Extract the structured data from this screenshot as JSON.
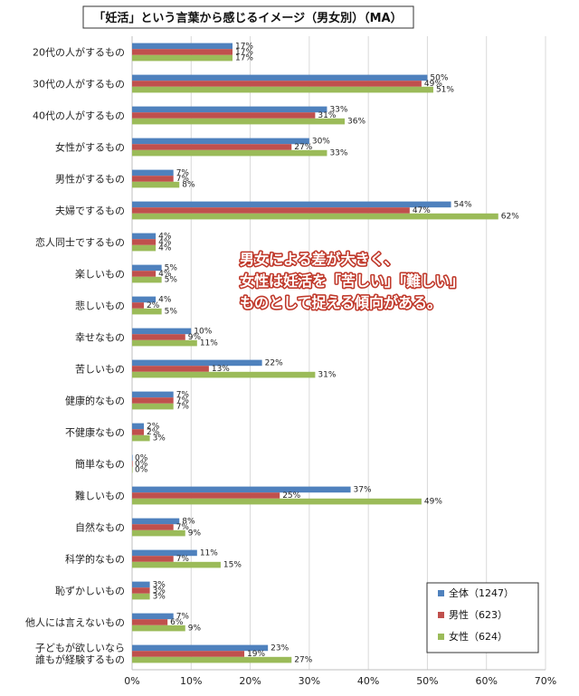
{
  "chart_data": {
    "type": "bar",
    "orientation": "horizontal",
    "title": "「妊活」という言葉から感じるイメージ（男女別）（MA）",
    "categories": [
      "20代の人がするもの",
      "30代の人がするもの",
      "40代の人がするもの",
      "女性がするもの",
      "男性がするもの",
      "夫婦でするもの",
      "恋人同士でするもの",
      "楽しいもの",
      "悲しいもの",
      "幸せなもの",
      "苦しいもの",
      "健康的なもの",
      "不健康なもの",
      "簡単なもの",
      "難しいもの",
      "自然なもの",
      "科学的なもの",
      "恥ずかしいもの",
      "他人には言えないもの",
      [
        "子どもが欲しいなら",
        "誰もが経験するもの"
      ]
    ],
    "series": [
      {
        "name": "全体（1247）",
        "color": "#4f81bd",
        "values": [
          17,
          50,
          33,
          30,
          7,
          54,
          4,
          5,
          4,
          10,
          22,
          7,
          2,
          0,
          37,
          8,
          11,
          3,
          7,
          23
        ]
      },
      {
        "name": "男性（623）",
        "color": "#c0504d",
        "values": [
          17,
          49,
          31,
          27,
          7,
          47,
          4,
          4,
          2,
          9,
          13,
          7,
          2,
          0,
          25,
          7,
          7,
          3,
          6,
          19
        ]
      },
      {
        "name": "女性（624）",
        "color": "#9bbb59",
        "values": [
          17,
          51,
          36,
          33,
          8,
          62,
          4,
          5,
          5,
          11,
          31,
          7,
          3,
          0,
          49,
          9,
          15,
          3,
          9,
          27
        ]
      }
    ],
    "value_suffix": "%",
    "xlim": [
      0,
      70
    ],
    "xticks": [
      0,
      10,
      20,
      30,
      40,
      50,
      60,
      70
    ],
    "xtick_labels": [
      "0%",
      "10%",
      "20%",
      "30%",
      "40%",
      "50%",
      "60%",
      "70%"
    ],
    "grid": true,
    "legend_position": "bottom-right",
    "annotation": [
      "男女による差が大きく、",
      "女性は妊活を「苦しい」「難しい」",
      "ものとして捉える傾向がある。"
    ]
  }
}
